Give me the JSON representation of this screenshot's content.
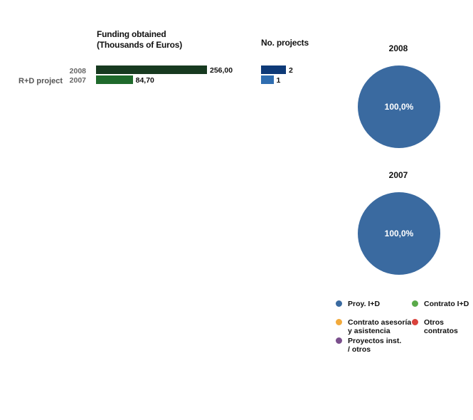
{
  "bar_section": {
    "funding_header": "Funding obtained\n(Thousands of Euros)",
    "projects_header": "No. projects",
    "row_label": "R+D project",
    "years": [
      "2008",
      "2007"
    ]
  },
  "pies": [
    {
      "title": "2008",
      "label": "100,0%"
    },
    {
      "title": "2007",
      "label": "100,0%"
    }
  ],
  "legend": [
    {
      "label": "Proy. I+D",
      "color": "#3a6aa0"
    },
    {
      "label": "Contrato I+D",
      "color": "#5aaa4a"
    },
    {
      "label": "Contrato asesoría\ny asistencia",
      "color": "#f2aa3c"
    },
    {
      "label": "Otros\ncontratos",
      "color": "#d9423c"
    },
    {
      "label": "Proyectos inst.\n/ otros",
      "color": "#7a4f8c"
    }
  ],
  "chart_data": [
    {
      "type": "bar",
      "title": "Funding obtained (Thousands of Euros)",
      "categories": [
        "2008",
        "2007"
      ],
      "values": [
        256.0,
        84.7
      ],
      "value_labels": [
        "256,00",
        "84,70"
      ],
      "colors": [
        "#173a20",
        "#1f6a2c"
      ],
      "row_label": "R+D project"
    },
    {
      "type": "bar",
      "title": "No. projects",
      "categories": [
        "2008",
        "2007"
      ],
      "values": [
        2,
        1
      ],
      "value_labels": [
        "2",
        "1"
      ],
      "colors": [
        "#0e3a78",
        "#2f6db0"
      ]
    },
    {
      "type": "pie",
      "title": "2008",
      "slices": [
        {
          "name": "Proy. I+D",
          "value": 100.0,
          "label": "100,0%",
          "color": "#3a6aa0"
        }
      ]
    },
    {
      "type": "pie",
      "title": "2007",
      "slices": [
        {
          "name": "Proy. I+D",
          "value": 100.0,
          "label": "100,0%",
          "color": "#3a6aa0"
        }
      ]
    }
  ]
}
